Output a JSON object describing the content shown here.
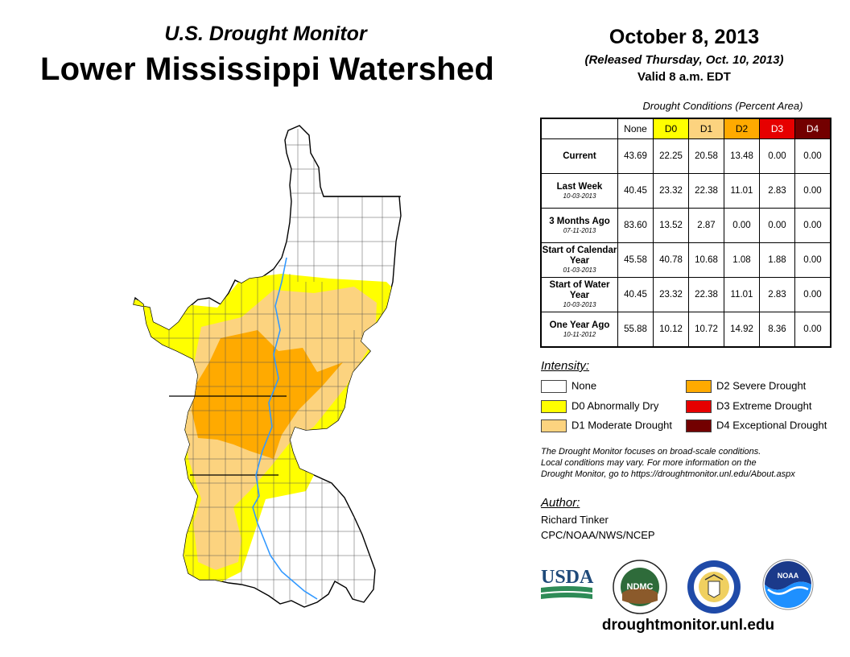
{
  "header": {
    "subtitle": "U.S. Drought Monitor",
    "title": "Lower Mississippi Watershed",
    "date": "October 8, 2013",
    "released": "(Released Thursday, Oct. 10, 2013)",
    "valid": "Valid 8 a.m. EDT"
  },
  "table": {
    "caption": "Drought Conditions (Percent Area)",
    "columns": [
      "None",
      "D0",
      "D1",
      "D2",
      "D3",
      "D4"
    ],
    "column_colors": [
      "#ffffff",
      "#ffff00",
      "#fcd37f",
      "#ffaa00",
      "#e60000",
      "#730000"
    ],
    "rows": [
      {
        "label": "Current",
        "sub": "",
        "values": [
          "43.69",
          "22.25",
          "20.58",
          "13.48",
          "0.00",
          "0.00"
        ]
      },
      {
        "label": "Last Week",
        "sub": "10-03-2013",
        "values": [
          "40.45",
          "23.32",
          "22.38",
          "11.01",
          "2.83",
          "0.00"
        ]
      },
      {
        "label": "3 Months Ago",
        "sub": "07-11-2013",
        "values": [
          "83.60",
          "13.52",
          "2.87",
          "0.00",
          "0.00",
          "0.00"
        ]
      },
      {
        "label": "Start of Calendar Year",
        "sub": "01-03-2013",
        "values": [
          "45.58",
          "40.78",
          "10.68",
          "1.08",
          "1.88",
          "0.00"
        ]
      },
      {
        "label": "Start of Water Year",
        "sub": "10-03-2013",
        "values": [
          "40.45",
          "23.32",
          "22.38",
          "11.01",
          "2.83",
          "0.00"
        ]
      },
      {
        "label": "One Year Ago",
        "sub": "10-11-2012",
        "values": [
          "55.88",
          "10.12",
          "10.72",
          "14.92",
          "8.36",
          "0.00"
        ]
      }
    ]
  },
  "legend": {
    "title": "Intensity:",
    "items": [
      {
        "label": "None",
        "color": "#ffffff"
      },
      {
        "label": "D0 Abnormally Dry",
        "color": "#ffff00"
      },
      {
        "label": "D1 Moderate Drought",
        "color": "#fcd37f"
      },
      {
        "label": "D2 Severe Drought",
        "color": "#ffaa00"
      },
      {
        "label": "D3 Extreme Drought",
        "color": "#e60000"
      },
      {
        "label": "D4 Exceptional Drought",
        "color": "#730000"
      }
    ]
  },
  "note": {
    "line1": "The Drought Monitor focuses on broad-scale conditions.",
    "line2": "Local conditions may vary. For more information on the",
    "line3": "Drought Monitor, go to https://droughtmonitor.unl.edu/About.aspx"
  },
  "author": {
    "title": "Author:",
    "name": "Richard Tinker",
    "org": "CPC/NOAA/NWS/NCEP"
  },
  "logos": {
    "usda": "USDA",
    "ndmc": "NDMC",
    "noaa": "NOAA"
  },
  "website": "droughtmonitor.unl.edu"
}
